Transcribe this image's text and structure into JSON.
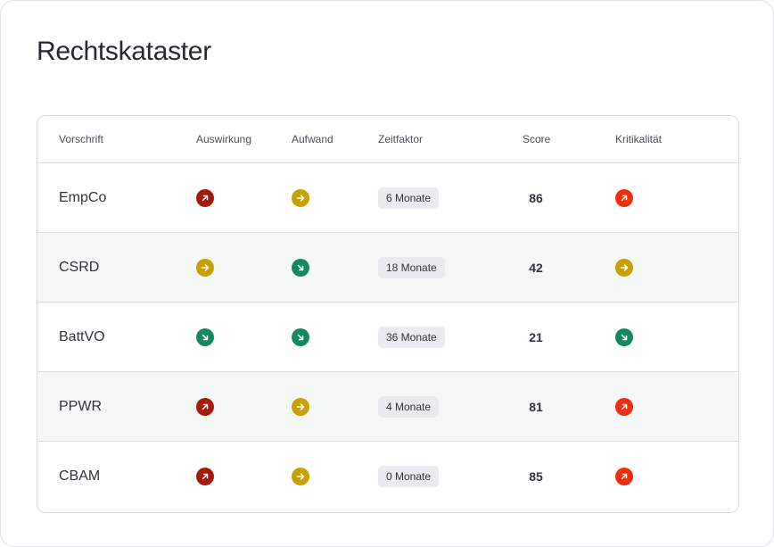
{
  "page": {
    "title": "Rechtskataster"
  },
  "colors": {
    "up-dark": "#a51b0b",
    "up-bright": "#f02d0f",
    "right": "#c9a004",
    "down": "#138a5e"
  },
  "table": {
    "headers": {
      "regulation": "Vorschrift",
      "impact": "Auswirkung",
      "effort": "Aufwand",
      "time": "Zeitfaktor",
      "score": "Score",
      "criticality": "Kritikalität"
    },
    "rows": [
      {
        "name": "EmpCo",
        "impact": "up-dark",
        "effort": "right",
        "time": "6 Monate",
        "score": "86",
        "criticality": "up-bright"
      },
      {
        "name": "CSRD",
        "impact": "right",
        "effort": "down",
        "time": "18 Monate",
        "score": "42",
        "criticality": "right"
      },
      {
        "name": "BattVO",
        "impact": "down",
        "effort": "down",
        "time": "36 Monate",
        "score": "21",
        "criticality": "down"
      },
      {
        "name": "PPWR",
        "impact": "up-dark",
        "effort": "right",
        "time": "4 Monate",
        "score": "81",
        "criticality": "up-bright"
      },
      {
        "name": "CBAM",
        "impact": "up-dark",
        "effort": "right",
        "time": "0 Monate",
        "score": "85",
        "criticality": "up-bright"
      }
    ]
  }
}
